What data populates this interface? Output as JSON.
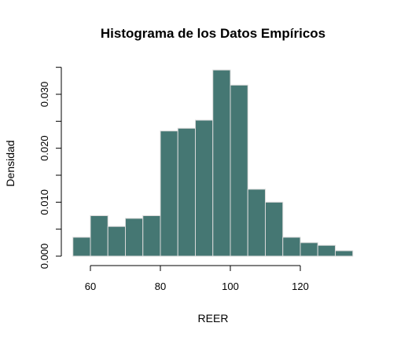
{
  "chart_data": {
    "type": "histogram",
    "title": "Histograma de los Datos Empíricos",
    "xlabel": "REER",
    "ylabel": "Densidad",
    "bar_color": "#457773",
    "bar_border_color": "#d9d9d9",
    "bin_width": 5,
    "bins": [
      {
        "start": 55,
        "end": 60,
        "density": 0.0035
      },
      {
        "start": 60,
        "end": 65,
        "density": 0.0075
      },
      {
        "start": 65,
        "end": 70,
        "density": 0.0055
      },
      {
        "start": 70,
        "end": 75,
        "density": 0.007
      },
      {
        "start": 75,
        "end": 80,
        "density": 0.0075
      },
      {
        "start": 80,
        "end": 85,
        "density": 0.0232
      },
      {
        "start": 85,
        "end": 90,
        "density": 0.0237
      },
      {
        "start": 90,
        "end": 95,
        "density": 0.0252
      },
      {
        "start": 95,
        "end": 100,
        "density": 0.0345
      },
      {
        "start": 100,
        "end": 105,
        "density": 0.0317
      },
      {
        "start": 105,
        "end": 110,
        "density": 0.0124
      },
      {
        "start": 110,
        "end": 115,
        "density": 0.01
      },
      {
        "start": 115,
        "end": 120,
        "density": 0.0035
      },
      {
        "start": 120,
        "end": 125,
        "density": 0.0025
      },
      {
        "start": 125,
        "end": 130,
        "density": 0.002
      },
      {
        "start": 130,
        "end": 135,
        "density": 0.001
      }
    ],
    "xlim": [
      55,
      135
    ],
    "ylim": [
      0,
      0.035
    ],
    "x_ticks": [
      60,
      80,
      100,
      120
    ],
    "x_tick_labels": [
      "60",
      "80",
      "100",
      "120"
    ],
    "y_ticks": [
      0,
      0.005,
      0.01,
      0.015,
      0.02,
      0.025,
      0.03,
      0.035
    ],
    "y_tick_labels": [
      "0.000",
      "",
      "0.010",
      "",
      "0.020",
      "",
      "0.030",
      ""
    ],
    "grid": false,
    "legend": "none"
  }
}
